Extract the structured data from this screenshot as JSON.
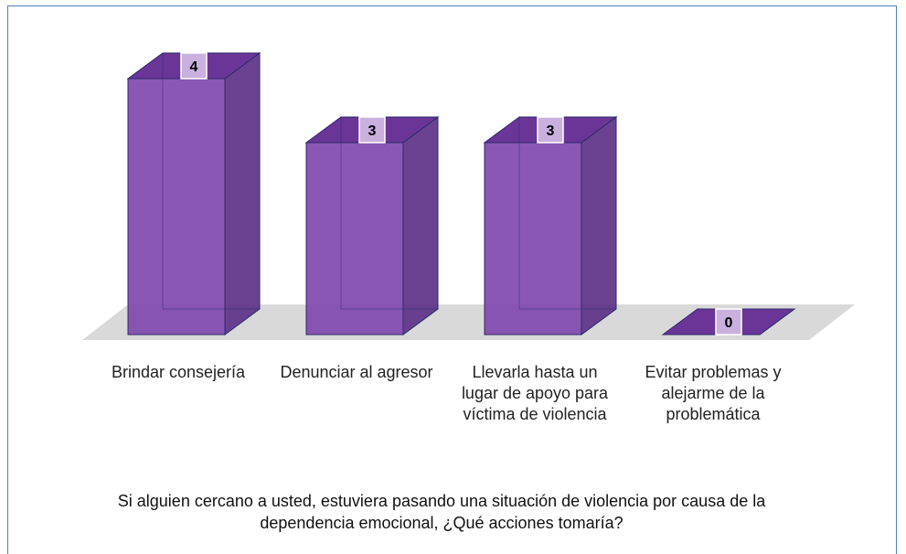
{
  "chart_data": {
    "type": "bar",
    "title": "Si alguien cercano a usted, estuviera pasando una situación de violencia por causa de la dependencia emocional, ¿Qué acciones tomaría?",
    "categories": [
      "Brindar consejería",
      "Denunciar al agresor",
      "Llevarla hasta un lugar de apoyo para víctima de violencia",
      "Evitar problemas y alejarme de la problemática"
    ],
    "values": [
      4,
      3,
      3,
      0
    ],
    "color": "#7e45ad"
  }
}
